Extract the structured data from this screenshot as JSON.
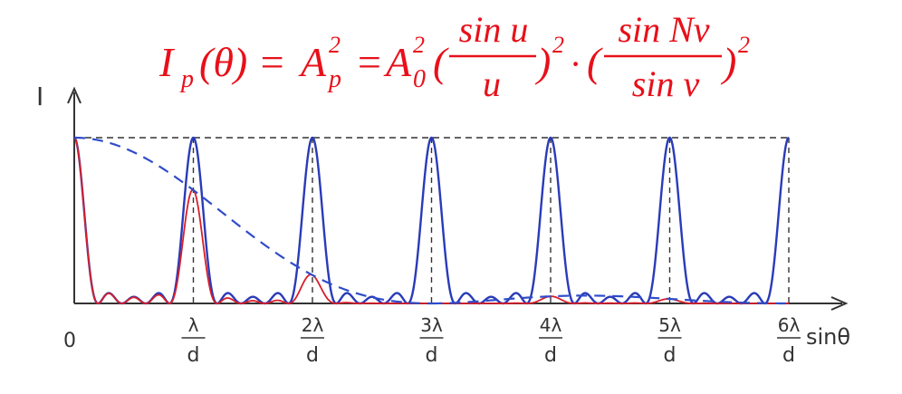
{
  "formula": {
    "lhs_I": "I",
    "lhs_sub": "p",
    "lhs_arg": "(θ) =",
    "mid_A": "A",
    "mid_sub": "p",
    "mid_sup": "2",
    "eq2": "=",
    "rhs_A": "A",
    "rhs_sub": "0",
    "rhs_sup": "2",
    "frac1_num": "sin u",
    "frac1_den": "u",
    "frac2_num": "sin Nv",
    "frac2_den": "sin v",
    "square": "2",
    "dot": "·",
    "lparen": "(",
    "rparen": ")"
  },
  "axes": {
    "y_label": "I",
    "x_label": "sinθ",
    "origin_label": "0"
  },
  "ticks": [
    {
      "num": "λ",
      "den": "d"
    },
    {
      "num": "2λ",
      "den": "d"
    },
    {
      "num": "3λ",
      "den": "d"
    },
    {
      "num": "4λ",
      "den": "d"
    },
    {
      "num": "5λ",
      "den": "d"
    },
    {
      "num": "6λ",
      "den": "d"
    }
  ],
  "colors": {
    "formula": "#e8101a",
    "blue_curve": "#2a3bb8",
    "red_curve": "#d81e2a",
    "dashed_envelope": "#2f4cc9",
    "axis": "#333333"
  },
  "model": {
    "grating_N": 5,
    "slit_ratio_d_over_a": 3,
    "missing_orders": [
      3,
      6
    ]
  }
}
